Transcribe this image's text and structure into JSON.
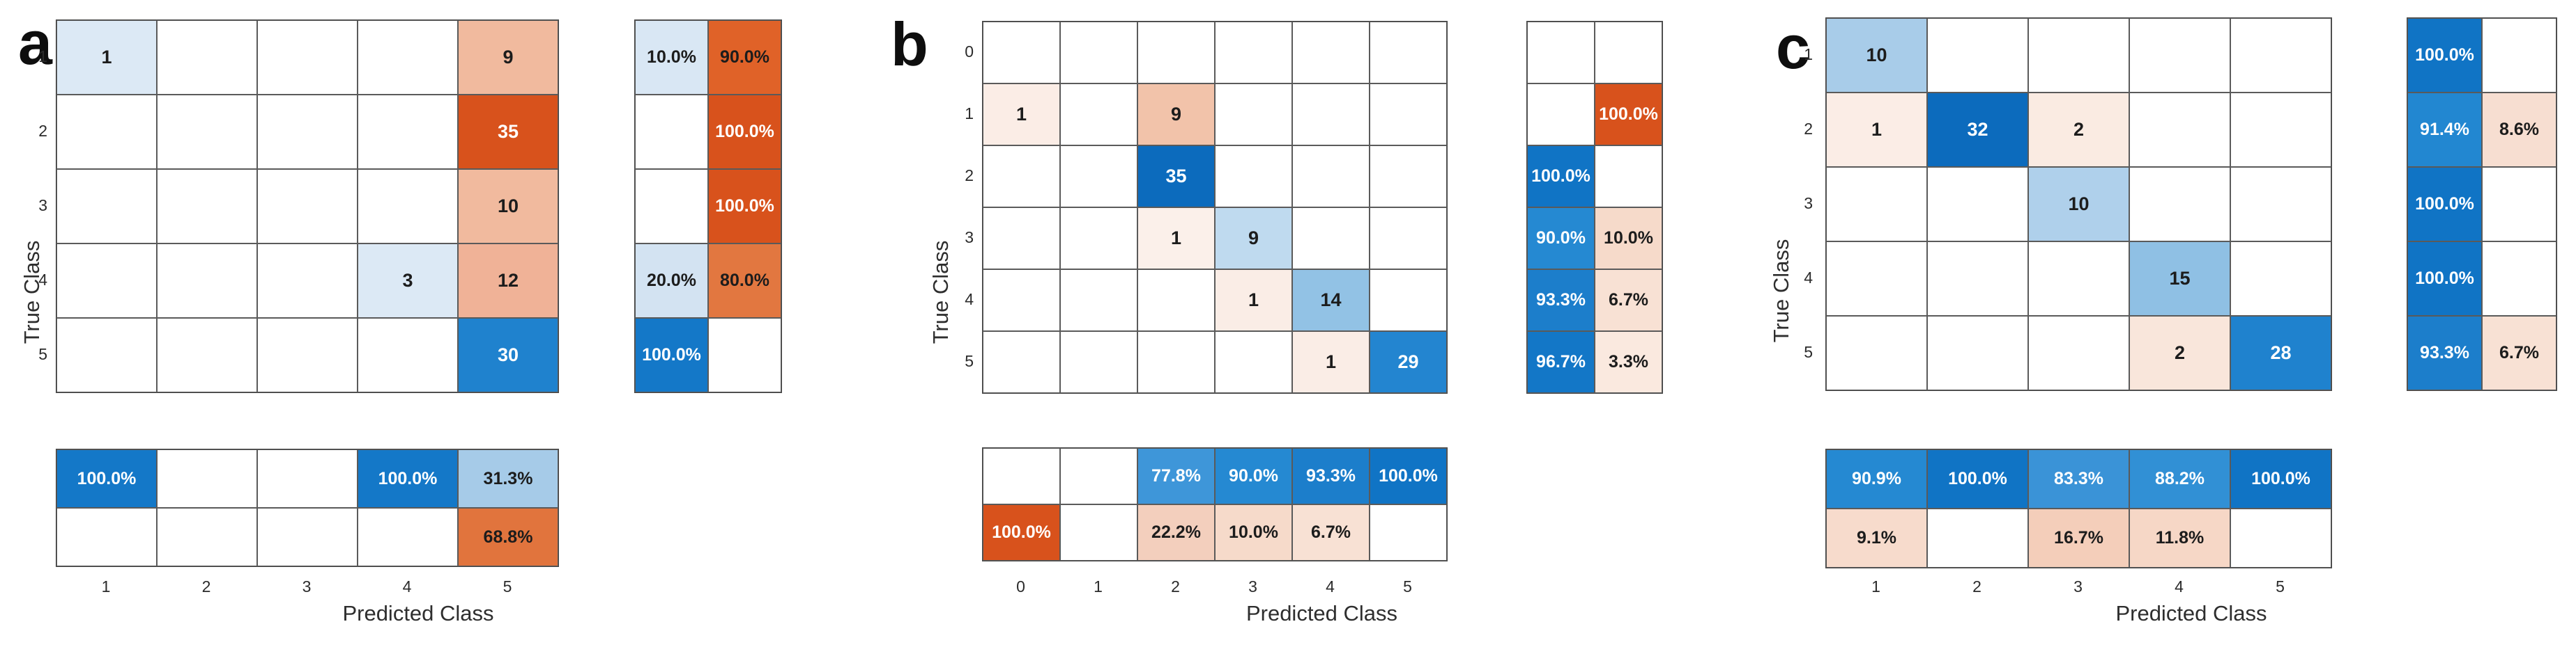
{
  "chart_data": [
    {
      "type": "heatmap",
      "panel_label": "a",
      "xlabel": "Predicted Class",
      "ylabel": "True Class",
      "classes": [
        "1",
        "2",
        "3",
        "4",
        "5"
      ],
      "matrix_values": [
        [
          "1",
          null,
          null,
          null,
          "9"
        ],
        [
          null,
          null,
          null,
          null,
          "35"
        ],
        [
          null,
          null,
          null,
          null,
          "10"
        ],
        [
          null,
          null,
          null,
          "3",
          "12"
        ],
        [
          null,
          null,
          null,
          null,
          "30"
        ]
      ],
      "matrix_colors": [
        [
          "#DCE9F5",
          null,
          null,
          null,
          "#F1BA9E"
        ],
        [
          null,
          null,
          null,
          null,
          "#D8521C"
        ],
        [
          null,
          null,
          null,
          null,
          "#F1BA9E"
        ],
        [
          null,
          null,
          null,
          "#DCE9F5",
          "#F0B297"
        ],
        [
          null,
          null,
          null,
          null,
          "#1F82CE"
        ]
      ],
      "row_summary_values": [
        [
          "10.0%",
          "90.0%"
        ],
        [
          null,
          "100.0%"
        ],
        [
          null,
          "100.0%"
        ],
        [
          "20.0%",
          "80.0%"
        ],
        [
          "100.0%",
          null
        ]
      ],
      "row_summary_colors": [
        [
          "#D9E7F4",
          "#E06228"
        ],
        [
          null,
          "#D8521C"
        ],
        [
          null,
          "#D8521C"
        ],
        [
          "#D3E3F2",
          "#E27740"
        ],
        [
          "#1478C8",
          null
        ]
      ],
      "col_summary_values": [
        [
          "100.0%",
          null,
          null,
          "100.0%",
          "31.3%"
        ],
        [
          null,
          null,
          null,
          null,
          "68.8%"
        ]
      ],
      "col_summary_colors": [
        [
          "#1478C8",
          null,
          null,
          "#1478C8",
          "#A6CBE8"
        ],
        [
          null,
          null,
          null,
          null,
          "#E1743D"
        ]
      ]
    },
    {
      "type": "heatmap",
      "panel_label": "b",
      "xlabel": "Predicted Class",
      "ylabel": "True Class",
      "classes": [
        "0",
        "1",
        "2",
        "3",
        "4",
        "5"
      ],
      "matrix_values": [
        [
          null,
          null,
          null,
          null,
          null,
          null
        ],
        [
          "1",
          null,
          "9",
          null,
          null,
          null
        ],
        [
          null,
          null,
          "35",
          null,
          null,
          null
        ],
        [
          null,
          null,
          "1",
          "9",
          null,
          null
        ],
        [
          null,
          null,
          null,
          "1",
          "14",
          null
        ],
        [
          null,
          null,
          null,
          null,
          "1",
          "29"
        ]
      ],
      "matrix_colors": [
        [
          null,
          null,
          null,
          null,
          null,
          null
        ],
        [
          "#FBEDE6",
          null,
          "#F2C3AA",
          null,
          null,
          null
        ],
        [
          null,
          null,
          "#0C6BBD",
          null,
          null,
          null
        ],
        [
          null,
          null,
          "#FBF0EA",
          "#BFDAEF",
          null,
          null
        ],
        [
          null,
          null,
          null,
          "#FAEDE6",
          "#92C2E5",
          null
        ],
        [
          null,
          null,
          null,
          null,
          "#FAEDE6",
          "#2385D0"
        ]
      ],
      "row_summary_values": [
        [
          null,
          null
        ],
        [
          null,
          "100.0%"
        ],
        [
          "100.0%",
          null
        ],
        [
          "90.0%",
          "10.0%"
        ],
        [
          "93.3%",
          "6.7%"
        ],
        [
          "96.7%",
          "3.3%"
        ]
      ],
      "row_summary_colors": [
        [
          null,
          null
        ],
        [
          null,
          "#D8521C"
        ],
        [
          "#1074C5",
          null
        ],
        [
          "#2589D2",
          "#F6DACA"
        ],
        [
          "#1C7ECB",
          "#F8E1D4"
        ],
        [
          "#1377C7",
          "#FAE9DF"
        ]
      ],
      "col_summary_values": [
        [
          null,
          null,
          "77.8%",
          "90.0%",
          "93.3%",
          "100.0%"
        ],
        [
          "100.0%",
          null,
          "22.2%",
          "10.0%",
          "6.7%",
          null
        ]
      ],
      "col_summary_colors": [
        [
          null,
          null,
          "#3E96D9",
          "#2589D2",
          "#1C7ECB",
          "#1074C5"
        ],
        [
          "#D8521C",
          null,
          "#F3CFBD",
          "#F6DACA",
          "#F8E1D4",
          null
        ]
      ]
    },
    {
      "type": "heatmap",
      "panel_label": "c",
      "xlabel": "Predicted Class",
      "ylabel": "True Class",
      "classes": [
        "1",
        "2",
        "3",
        "4",
        "5"
      ],
      "matrix_values": [
        [
          "10",
          null,
          null,
          null,
          null
        ],
        [
          "1",
          "32",
          "2",
          null,
          null
        ],
        [
          null,
          null,
          "10",
          null,
          null
        ],
        [
          null,
          null,
          null,
          "15",
          null
        ],
        [
          null,
          null,
          null,
          "2",
          "28"
        ]
      ],
      "matrix_colors": [
        [
          "#A8CCE9",
          null,
          null,
          null,
          null
        ],
        [
          "#FBEDE6",
          "#0C6BBD",
          "#FAEBE2",
          null,
          null
        ],
        [
          null,
          null,
          "#AFD0EB",
          null,
          null
        ],
        [
          null,
          null,
          null,
          "#8FC0E4",
          null
        ],
        [
          null,
          null,
          null,
          "#F9E6DB",
          "#1F82CE"
        ]
      ],
      "row_summary_values": [
        [
          "100.0%",
          null
        ],
        [
          "91.4%",
          "8.6%"
        ],
        [
          "100.0%",
          null
        ],
        [
          "100.0%",
          null
        ],
        [
          "93.3%",
          "6.7%"
        ]
      ],
      "row_summary_colors": [
        [
          "#1074C5",
          null
        ],
        [
          "#2287D1",
          "#F7DED1"
        ],
        [
          "#1074C5",
          null
        ],
        [
          "#1074C5",
          null
        ],
        [
          "#1C7ECB",
          "#F8E1D4"
        ]
      ],
      "col_summary_values": [
        [
          "90.9%",
          "100.0%",
          "83.3%",
          "88.2%",
          "100.0%"
        ],
        [
          "9.1%",
          null,
          "16.7%",
          "11.8%",
          null
        ]
      ],
      "col_summary_colors": [
        [
          "#2589D2",
          "#1074C5",
          "#3A93D7",
          "#3190D5",
          "#1074C5"
        ],
        [
          "#F7DBCC",
          null,
          "#F4CEBA",
          "#F6D7C6",
          null
        ]
      ]
    }
  ]
}
